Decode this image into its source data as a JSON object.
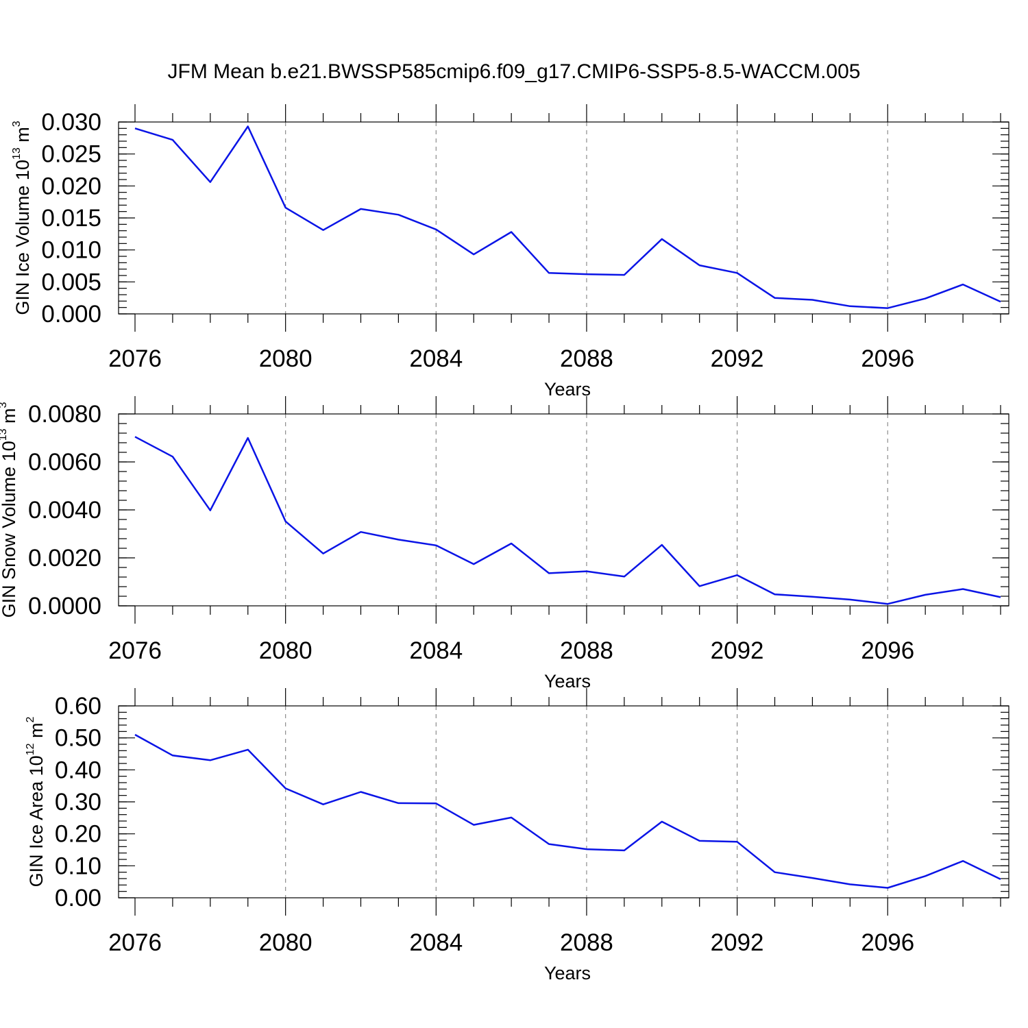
{
  "title": "JFM Mean b.e21.BWSSP585cmip6.f09_g17.CMIP6-SSP5-8.5-WACCM.005",
  "colors": {
    "line": "#0a14e6",
    "grid": "#8c8c8c",
    "axis": "#000000"
  },
  "chart_data": [
    {
      "type": "line",
      "ylabel": "GIN Ice Volume 10",
      "ylabel_exp": "13",
      "ylabel_unit": "m",
      "ylabel_unit_exp": "3",
      "xlabel": "Years",
      "xlim": [
        2076,
        2099
      ],
      "ylim": [
        0.0,
        0.03
      ],
      "grid": "vertical dashed at major ticks",
      "xticks": [
        2076,
        2080,
        2084,
        2088,
        2092,
        2096
      ],
      "xtick_labels": [
        "2076",
        "2080",
        "2084",
        "2088",
        "2092",
        "2096"
      ],
      "yticks": [
        0.0,
        0.005,
        0.01,
        0.015,
        0.02,
        0.025,
        0.03
      ],
      "ytick_labels": [
        "0.000",
        "0.005",
        "0.010",
        "0.015",
        "0.020",
        "0.025",
        "0.030"
      ],
      "yminor": 0.001,
      "x": [
        2076,
        2077,
        2078,
        2079,
        2080,
        2081,
        2082,
        2083,
        2084,
        2085,
        2086,
        2087,
        2088,
        2089,
        2090,
        2091,
        2092,
        2093,
        2094,
        2095,
        2096,
        2097,
        2098,
        2099
      ],
      "y": [
        0.029,
        0.0272,
        0.0206,
        0.0293,
        0.0166,
        0.0131,
        0.0164,
        0.0155,
        0.0132,
        0.0093,
        0.0128,
        0.0064,
        0.0062,
        0.0061,
        0.0117,
        0.0076,
        0.0064,
        0.0025,
        0.0022,
        0.0012,
        0.0009,
        0.0024,
        0.0046,
        0.0019
      ]
    },
    {
      "type": "line",
      "ylabel": "GIN Snow Volume 10",
      "ylabel_exp": "13",
      "ylabel_unit": "m",
      "ylabel_unit_exp": "3",
      "xlabel": "Years",
      "xlim": [
        2076,
        2099
      ],
      "ylim": [
        0.0,
        0.008
      ],
      "grid": "vertical dashed at major ticks",
      "xticks": [
        2076,
        2080,
        2084,
        2088,
        2092,
        2096
      ],
      "xtick_labels": [
        "2076",
        "2080",
        "2084",
        "2088",
        "2092",
        "2096"
      ],
      "yticks": [
        0.0,
        0.002,
        0.004,
        0.006,
        0.008
      ],
      "ytick_labels": [
        "0.0000",
        "0.0020",
        "0.0040",
        "0.0060",
        "0.0080"
      ],
      "yminor": 0.0004,
      "x": [
        2076,
        2077,
        2078,
        2079,
        2080,
        2081,
        2082,
        2083,
        2084,
        2085,
        2086,
        2087,
        2088,
        2089,
        2090,
        2091,
        2092,
        2093,
        2094,
        2095,
        2096,
        2097,
        2098,
        2099
      ],
      "y": [
        0.00705,
        0.00622,
        0.00398,
        0.007,
        0.00352,
        0.00218,
        0.00308,
        0.00276,
        0.00252,
        0.00174,
        0.0026,
        0.00136,
        0.00144,
        0.00122,
        0.00254,
        0.00082,
        0.00128,
        0.00048,
        0.00038,
        0.00026,
        8e-05,
        0.00046,
        0.0007,
        0.00036
      ]
    },
    {
      "type": "line",
      "ylabel": "GIN Ice Area 10",
      "ylabel_exp": "12",
      "ylabel_unit": "m",
      "ylabel_unit_exp": "2",
      "xlabel": "Years",
      "xlim": [
        2076,
        2099
      ],
      "ylim": [
        0.0,
        0.6
      ],
      "grid": "vertical dashed at major ticks",
      "xticks": [
        2076,
        2080,
        2084,
        2088,
        2092,
        2096
      ],
      "xtick_labels": [
        "2076",
        "2080",
        "2084",
        "2088",
        "2092",
        "2096"
      ],
      "yticks": [
        0.0,
        0.1,
        0.2,
        0.3,
        0.4,
        0.5,
        0.6
      ],
      "ytick_labels": [
        "0.00",
        "0.10",
        "0.20",
        "0.30",
        "0.40",
        "0.50",
        "0.60"
      ],
      "yminor": 0.02,
      "x": [
        2076,
        2077,
        2078,
        2079,
        2080,
        2081,
        2082,
        2083,
        2084,
        2085,
        2086,
        2087,
        2088,
        2089,
        2090,
        2091,
        2092,
        2093,
        2094,
        2095,
        2096,
        2097,
        2098,
        2099
      ],
      "y": [
        0.51,
        0.445,
        0.43,
        0.463,
        0.342,
        0.292,
        0.331,
        0.296,
        0.295,
        0.228,
        0.251,
        0.168,
        0.152,
        0.148,
        0.238,
        0.178,
        0.175,
        0.08,
        0.062,
        0.042,
        0.031,
        0.068,
        0.115,
        0.058
      ]
    }
  ]
}
